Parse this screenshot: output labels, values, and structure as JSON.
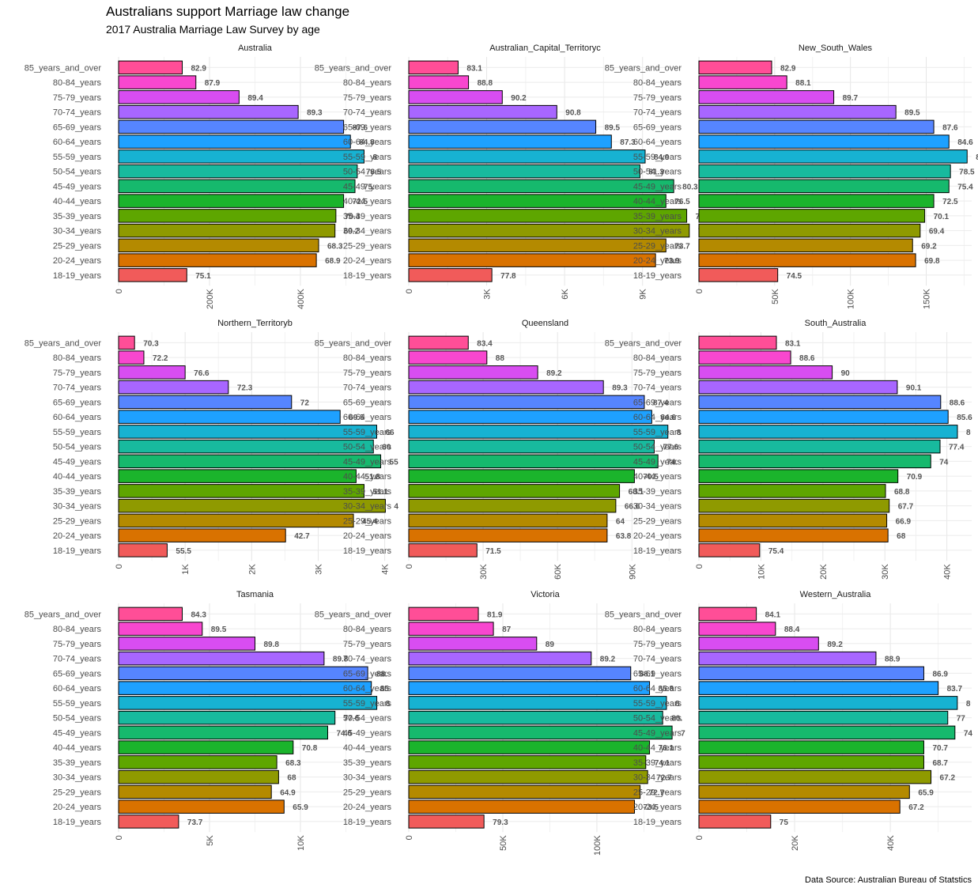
{
  "title": "Australians support Marriage law change",
  "subtitle": "2017 Australia Marriage Law Survey by age",
  "caption": "Data Source: Australian Bureau of Statstics",
  "chart_data": {
    "type": "bar",
    "orientation": "horizontal",
    "facets": "3x3",
    "categories": [
      "85_years_and_over",
      "80-84_years",
      "75-79_years",
      "70-74_years",
      "65-69_years",
      "60-64_years",
      "55-59_years",
      "50-54_years",
      "45-49_years",
      "40-44_years",
      "35-39_years",
      "30-34_years",
      "25-29_years",
      "20-24_years",
      "18-19_years"
    ],
    "colors": [
      "#FF4E97",
      "#F847CF",
      "#D84DF1",
      "#A866FF",
      "#5685FF",
      "#1EA1FF",
      "#17B2D2",
      "#18BA9E",
      "#16B96D",
      "#1BB42C",
      "#5EA600",
      "#8F9A00",
      "#B48A00",
      "#D97200",
      "#F15B5A"
    ],
    "panels": [
      {
        "name": "Australia",
        "xlim": [
          0,
          600000
        ],
        "ticks": [
          0,
          200000,
          400000
        ],
        "tick_labels": [
          "0",
          "200K",
          "400K"
        ],
        "values": [
          140000,
          170000,
          265000,
          395000,
          495000,
          510000,
          540000,
          525000,
          520000,
          495000,
          478000,
          476000,
          440000,
          435000,
          150000
        ],
        "labels": [
          "82.9",
          "87.9",
          "89.4",
          "89.3",
          "87.6",
          "84.8",
          "8",
          "78.5",
          "75.",
          "72.5",
          "70.4",
          "69.2",
          "68.3",
          "68.9",
          "75.1"
        ]
      },
      {
        "name": "Australian_Capital_Territoryc",
        "xlim": [
          0,
          10500
        ],
        "ticks": [
          0,
          3000,
          6000,
          9000
        ],
        "tick_labels": [
          "0",
          "3K",
          "6K",
          "9K"
        ],
        "values": [
          1900,
          2300,
          3600,
          5700,
          7200,
          7800,
          9100,
          8900,
          10200,
          9900,
          10700,
          10800,
          9900,
          9500,
          3200
        ],
        "labels": [
          "83.1",
          "88.8",
          "90.2",
          "90.8",
          "89.5",
          "87.3",
          "84.9",
          "81.3",
          "80.3",
          "76.5",
          "7(",
          "7",
          "73.7",
          "73.9",
          "77.8"
        ]
      },
      {
        "name": "New_South_Wales",
        "xlim": [
          0,
          180000
        ],
        "ticks": [
          0,
          50000,
          100000,
          150000
        ],
        "tick_labels": [
          "0",
          "50K",
          "100K",
          "150K"
        ],
        "values": [
          48000,
          58000,
          89000,
          130000,
          155000,
          165000,
          177000,
          166000,
          165000,
          155000,
          149000,
          146000,
          141000,
          143000,
          52000
        ],
        "labels": [
          "82.9",
          "88.1",
          "89.7",
          "89.5",
          "87.6",
          "84.6",
          "8",
          "78.5",
          "75.4",
          "72.5",
          "70.1",
          "69.4",
          "69.2",
          "69.8",
          "74.5"
        ]
      },
      {
        "name": "Northern_Territoryb",
        "xlim": [
          0,
          4100
        ],
        "ticks": [
          0,
          1000,
          2000,
          3000,
          4000
        ],
        "tick_labels": [
          "0",
          "1K",
          "2K",
          "3K",
          "4K"
        ],
        "values": [
          240,
          380,
          1000,
          1650,
          2600,
          3330,
          3880,
          3830,
          3940,
          3570,
          3690,
          4010,
          3530,
          2510,
          730
        ],
        "labels": [
          "70.3",
          "72.2",
          "76.6",
          "72.3",
          "72",
          "69.5",
          "66",
          "60",
          "55",
          "51.8",
          "51.1",
          "4",
          "45.4",
          "42.7",
          "55.5"
        ]
      },
      {
        "name": "Queensland",
        "xlim": [
          0,
          110000
        ],
        "ticks": [
          0,
          30000,
          60000,
          90000
        ],
        "tick_labels": [
          "0",
          "30K",
          "60K",
          "90K"
        ],
        "values": [
          24000,
          31500,
          52000,
          78500,
          95000,
          98000,
          104500,
          99000,
          100500,
          91000,
          85000,
          83500,
          80000,
          80000,
          27500
        ],
        "labels": [
          "83.4",
          "88",
          "89.2",
          "89.3",
          "87.4",
          "84.6",
          "8",
          "77.6",
          "74.",
          "70.5",
          "68.1",
          "66.6",
          "64",
          "63.8",
          "71.5"
        ]
      },
      {
        "name": "South_Australia",
        "xlim": [
          0,
          44000
        ],
        "ticks": [
          0,
          10000,
          20000,
          30000,
          40000
        ],
        "tick_labels": [
          "0",
          "10K",
          "20K",
          "30K",
          "40K"
        ],
        "values": [
          12500,
          14800,
          21500,
          32000,
          39000,
          40200,
          41700,
          38900,
          37400,
          32100,
          30100,
          30700,
          30300,
          30500,
          9800
        ],
        "labels": [
          "83.1",
          "88.6",
          "90",
          "90.1",
          "88.6",
          "85.6",
          "8",
          "77.4",
          "74",
          "70.9",
          "68.8",
          "67.7",
          "66.9",
          "68",
          "75.4"
        ]
      },
      {
        "name": "Tasmania",
        "xlim": [
          0,
          15000
        ],
        "ticks": [
          0,
          5000,
          10000
        ],
        "tick_labels": [
          "0",
          "5K",
          "10K"
        ],
        "values": [
          3500,
          4600,
          7500,
          11300,
          13700,
          13900,
          14200,
          11900,
          11500,
          9600,
          8700,
          8800,
          8400,
          9100,
          3300
        ],
        "labels": [
          "84.3",
          "89.5",
          "89.8",
          "89.8",
          "88.",
          "85",
          "8",
          "77.6",
          "74.6",
          "70.8",
          "68.3",
          "68",
          "64.9",
          "65.9",
          "73.7"
        ]
      },
      {
        "name": "Victoria",
        "xlim": [
          0,
          145000
        ],
        "ticks": [
          0,
          50000,
          100000
        ],
        "tick_labels": [
          "0",
          "50K",
          "100K"
        ],
        "values": [
          37000,
          45000,
          68000,
          97000,
          118000,
          128000,
          137000,
          135000,
          140000,
          128000,
          126000,
          127000,
          123000,
          120000,
          40000
        ],
        "labels": [
          "81.9",
          "87",
          "89",
          "89.2",
          "88.1",
          "85.8",
          "8",
          "80.",
          "7",
          "76.1",
          "74.1",
          "72.7",
          "72.7",
          "73.5",
          "79.3"
        ]
      },
      {
        "name": "Western_Australia",
        "xlim": [
          0,
          57000
        ],
        "ticks": [
          0,
          20000,
          40000
        ],
        "tick_labels": [
          "0",
          "20K",
          "40K"
        ],
        "values": [
          12000,
          16000,
          25000,
          37000,
          47000,
          50000,
          54000,
          52000,
          53500,
          47000,
          47000,
          48500,
          44000,
          42000,
          15000
        ],
        "labels": [
          "84.1",
          "88.4",
          "89.2",
          "88.9",
          "86.9",
          "83.7",
          "8",
          "77",
          "74",
          "70.7",
          "68.7",
          "67.2",
          "65.9",
          "67.2",
          "75"
        ]
      }
    ]
  }
}
